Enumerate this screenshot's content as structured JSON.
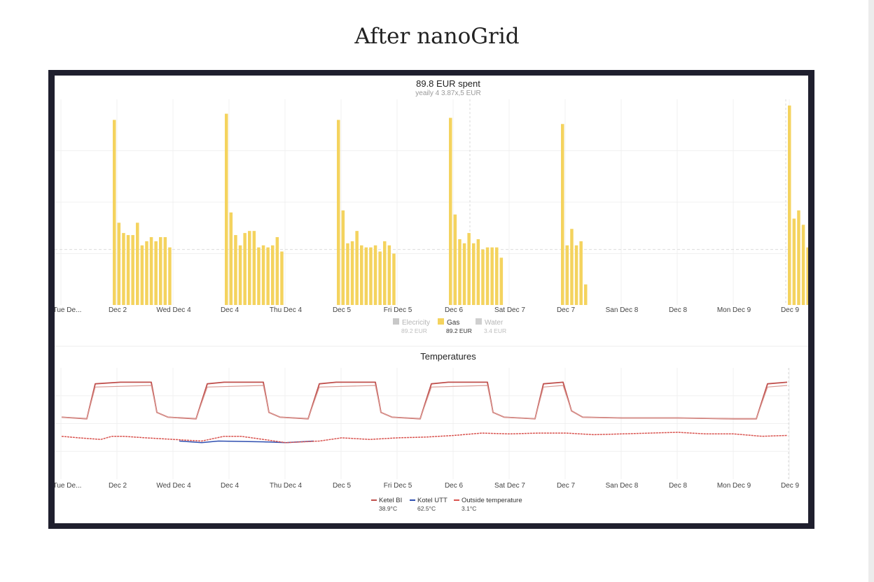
{
  "page": {
    "title": "After nanoGrid"
  },
  "colors": {
    "gas": "#f4d35e",
    "electricity": "#c8c8c8",
    "water": "#cfcfcf",
    "ketel_bi": "#c0504d",
    "ketel_utt": "#2f4fb0",
    "outside": "#d9534f"
  },
  "chart_data": [
    {
      "type": "bar",
      "title": "89.8 EUR spent",
      "subtitle": "yeaily 4 3.87x,5 EUR",
      "x_tick_labels": [
        "Tue De...",
        "Dec 2",
        "Wed Dec 4",
        "Dec 4",
        "Thu Dec 4",
        "Dec 5",
        "Fri Dec 5",
        "Dec 6",
        "Sat Dec 7",
        "Dec 7",
        "San Dec 8",
        "Dec 8",
        "Mon Dec 9",
        "Dec 9"
      ],
      "ylim": [
        0,
        1
      ],
      "grid": true,
      "legend": [
        {
          "name": "Elecricity",
          "value": "89.2 EUR",
          "color": "#c8c8c8"
        },
        {
          "name": "Gas",
          "value": "89.2 EUR",
          "color": "#f4d35e"
        },
        {
          "name": "Water",
          "value": "3.4 EUR",
          "color": "#cfcfcf"
        }
      ],
      "legend_position": "bottom",
      "series": [
        {
          "name": "Gas",
          "groups": [
            {
              "start": 0.5,
              "values": [
                0.9,
                0.4,
                0.35,
                0.34,
                0.34,
                0.4,
                0.29,
                0.31,
                0.33,
                0.31,
                0.33,
                0.33,
                0.28
              ]
            },
            {
              "start": 2.5,
              "values": [
                0.93,
                0.45,
                0.34,
                0.29,
                0.35,
                0.36,
                0.36,
                0.28,
                0.29,
                0.28,
                0.29,
                0.33,
                0.26
              ]
            },
            {
              "start": 4.5,
              "values": [
                0.9,
                0.46,
                0.3,
                0.31,
                0.36,
                0.29,
                0.28,
                0.28,
                0.29,
                0.26,
                0.31,
                0.29,
                0.25
              ]
            },
            {
              "start": 6.5,
              "values": [
                0.91,
                0.44,
                0.32,
                0.3,
                0.35,
                0.3,
                0.32,
                0.27,
                0.28,
                0.28,
                0.28,
                0.23
              ]
            },
            {
              "start": 8.5,
              "values": [
                0.88,
                0.29,
                0.37,
                0.29,
                0.31,
                0.1
              ]
            },
            {
              "start": 12.55,
              "values": [
                0.97,
                0.42,
                0.46,
                0.39,
                0.28
              ]
            }
          ]
        }
      ]
    },
    {
      "type": "line",
      "title": "Temperatures",
      "x_tick_labels": [
        "Tue De...",
        "Dec 2",
        "Wed Dec 4",
        "Dec 4",
        "Thu Dec 4",
        "Dec 5",
        "Fri Dec 5",
        "Dec 6",
        "Sat Dec 7",
        "Dec 7",
        "San Dec 8",
        "Dec 8",
        "Mon Dec 9",
        "Dec 9"
      ],
      "ylim": [
        0,
        70
      ],
      "grid": true,
      "legend": [
        {
          "name": "Ketel BI",
          "value": "38.9°C",
          "color": "#c0504d"
        },
        {
          "name": "Kotel UTT",
          "value": "62.5°C",
          "color": "#2f4fb0"
        },
        {
          "name": "Outside temperature",
          "value": "3.1°C",
          "color": "#d9534f"
        }
      ],
      "legend_position": "bottom",
      "series": [
        {
          "name": "Ketel BI",
          "points": [
            [
              0,
              39
            ],
            [
              0.45,
              38
            ],
            [
              0.6,
              60
            ],
            [
              1.05,
              61
            ],
            [
              1.6,
              61
            ],
            [
              1.7,
              42
            ],
            [
              1.9,
              39
            ],
            [
              2.4,
              38
            ],
            [
              2.6,
              60
            ],
            [
              2.9,
              61
            ],
            [
              3.6,
              61
            ],
            [
              3.7,
              42
            ],
            [
              3.9,
              39
            ],
            [
              4.4,
              38
            ],
            [
              4.6,
              60
            ],
            [
              4.9,
              61
            ],
            [
              5.6,
              61
            ],
            [
              5.7,
              42
            ],
            [
              5.9,
              39
            ],
            [
              6.4,
              38
            ],
            [
              6.6,
              60
            ],
            [
              6.9,
              61
            ],
            [
              7.6,
              61
            ],
            [
              7.7,
              42
            ],
            [
              7.9,
              39
            ],
            [
              8.45,
              38
            ],
            [
              8.6,
              60
            ],
            [
              8.95,
              61
            ],
            [
              9.1,
              43
            ],
            [
              9.3,
              39
            ],
            [
              10,
              38.5
            ],
            [
              11,
              38.5
            ],
            [
              12,
              38
            ],
            [
              12.4,
              38
            ],
            [
              12.6,
              60
            ],
            [
              12.95,
              61
            ]
          ]
        },
        {
          "name": "Ketel BI (setpoint)",
          "points": [
            [
              0,
              39
            ],
            [
              0.45,
              38
            ],
            [
              0.6,
              58
            ],
            [
              1.6,
              59
            ],
            [
              1.7,
              42
            ],
            [
              1.9,
              39
            ],
            [
              2.4,
              38
            ],
            [
              2.6,
              58
            ],
            [
              3.6,
              59
            ],
            [
              3.7,
              42
            ],
            [
              3.9,
              39
            ],
            [
              4.4,
              38
            ],
            [
              4.6,
              58
            ],
            [
              5.6,
              59
            ],
            [
              5.7,
              42
            ],
            [
              5.9,
              39
            ],
            [
              6.4,
              38
            ],
            [
              6.6,
              58
            ],
            [
              7.6,
              59
            ],
            [
              7.7,
              42
            ],
            [
              7.9,
              39
            ],
            [
              8.45,
              38
            ],
            [
              8.6,
              58
            ],
            [
              8.95,
              59
            ],
            [
              9.1,
              43
            ],
            [
              9.3,
              39
            ],
            [
              10,
              38.5
            ],
            [
              11,
              38.5
            ],
            [
              12,
              38
            ],
            [
              12.4,
              38
            ],
            [
              12.6,
              58
            ],
            [
              12.95,
              59
            ]
          ]
        },
        {
          "name": "Kotel UTT",
          "points": [
            [
              2.1,
              24
            ],
            [
              2.5,
              23
            ],
            [
              2.8,
              24
            ],
            [
              3.6,
              23.5
            ],
            [
              4.0,
              23
            ],
            [
              4.5,
              24
            ]
          ]
        },
        {
          "name": "Outside temperature",
          "points": [
            [
              0,
              27
            ],
            [
              0.3,
              26
            ],
            [
              0.7,
              25
            ],
            [
              0.9,
              27
            ],
            [
              1.1,
              27
            ],
            [
              1.5,
              26
            ],
            [
              2.0,
              25
            ],
            [
              2.5,
              24
            ],
            [
              2.9,
              27
            ],
            [
              3.2,
              27
            ],
            [
              3.6,
              25
            ],
            [
              4.0,
              23
            ],
            [
              4.6,
              24
            ],
            [
              5.0,
              26
            ],
            [
              5.5,
              25
            ],
            [
              6.0,
              26
            ],
            [
              6.5,
              26.5
            ],
            [
              7.0,
              27.5
            ],
            [
              7.5,
              29
            ],
            [
              8.0,
              28.5
            ],
            [
              8.5,
              29
            ],
            [
              9.0,
              29
            ],
            [
              9.5,
              28
            ],
            [
              10,
              28.5
            ],
            [
              10.5,
              29
            ],
            [
              11,
              29.5
            ],
            [
              11.5,
              28.5
            ],
            [
              12,
              28.5
            ],
            [
              12.5,
              27
            ],
            [
              12.95,
              27.5
            ]
          ]
        }
      ]
    }
  ]
}
